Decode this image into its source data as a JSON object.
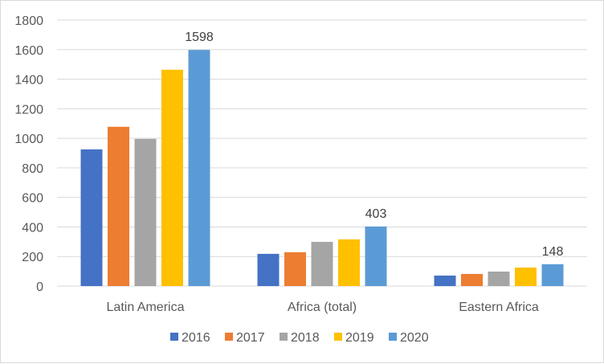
{
  "chart_data": {
    "type": "bar",
    "title": "",
    "xlabel": "",
    "ylabel": "",
    "ylim": [
      0,
      1800
    ],
    "yticks": [
      0,
      200,
      400,
      600,
      800,
      1000,
      1200,
      1400,
      1600,
      1800
    ],
    "grid": true,
    "legend_position": "bottom",
    "categories": [
      "Latin America",
      "Africa (total)",
      "Eastern Africa"
    ],
    "series": [
      {
        "name": "2016",
        "color": "#4472c4",
        "values": [
          925,
          218,
          71
        ]
      },
      {
        "name": "2017",
        "color": "#ed7d31",
        "values": [
          1078,
          229,
          82
        ]
      },
      {
        "name": "2018",
        "color": "#a5a5a5",
        "values": [
          996,
          299,
          98
        ]
      },
      {
        "name": "2019",
        "color": "#ffc000",
        "values": [
          1464,
          316,
          125
        ]
      },
      {
        "name": "2020",
        "color": "#5b9bd5",
        "values": [
          1598,
          403,
          148
        ]
      }
    ],
    "data_labels": [
      {
        "series": "2020",
        "category": "Latin America",
        "text": "1598"
      },
      {
        "series": "2020",
        "category": "Africa (total)",
        "text": "403"
      },
      {
        "series": "2020",
        "category": "Eastern Africa",
        "text": "148"
      }
    ]
  }
}
